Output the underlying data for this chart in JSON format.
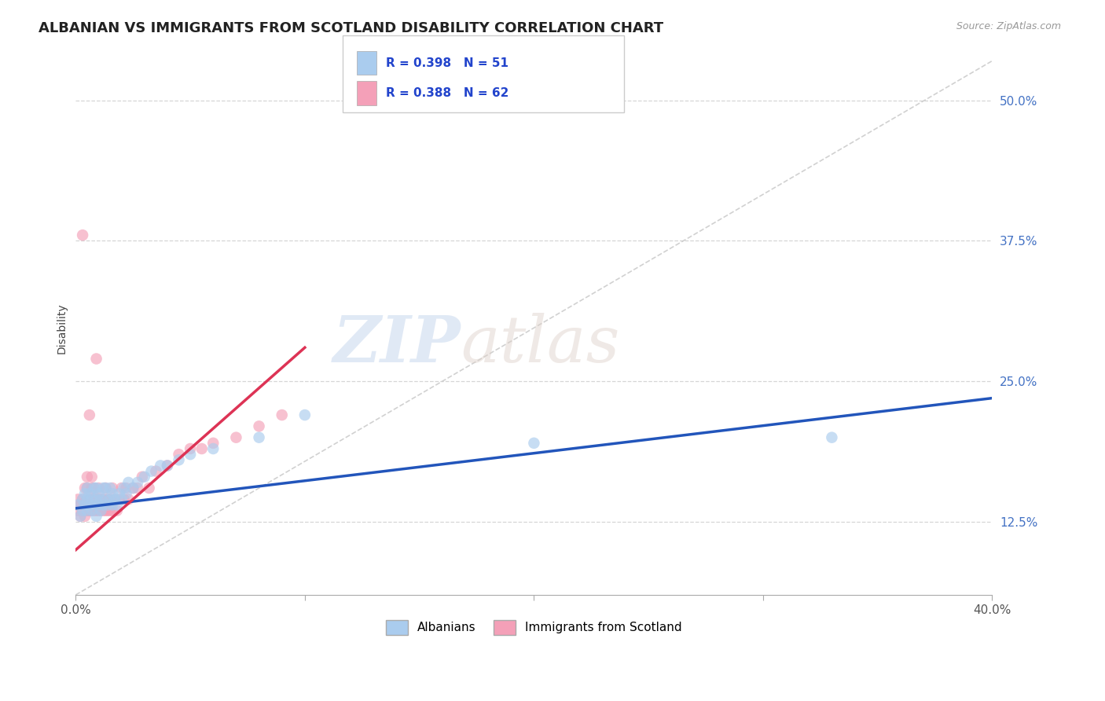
{
  "title": "ALBANIAN VS IMMIGRANTS FROM SCOTLAND DISABILITY CORRELATION CHART",
  "source": "Source: ZipAtlas.com",
  "ylabel": "Disability",
  "xlim": [
    0.0,
    0.4
  ],
  "ylim": [
    0.06,
    0.535
  ],
  "yticks": [
    0.125,
    0.25,
    0.375,
    0.5
  ],
  "yticklabels": [
    "12.5%",
    "25.0%",
    "37.5%",
    "50.0%"
  ],
  "background_color": "#ffffff",
  "grid_color": "#cccccc",
  "legend_R1": "R = 0.398",
  "legend_N1": "N = 51",
  "legend_R2": "R = 0.388",
  "legend_N2": "N = 62",
  "legend_label1": "Albanians",
  "legend_label2": "Immigrants from Scotland",
  "dot_color_blue": "#aaccee",
  "dot_color_pink": "#f4a0b8",
  "line_color_blue": "#2255bb",
  "line_color_pink": "#dd3355",
  "ref_line_color": "#cccccc",
  "title_fontsize": 13,
  "axis_label_fontsize": 10,
  "tick_fontsize": 11,
  "blue_points_x": [
    0.001,
    0.002,
    0.003,
    0.003,
    0.004,
    0.004,
    0.005,
    0.005,
    0.005,
    0.006,
    0.006,
    0.007,
    0.007,
    0.008,
    0.008,
    0.009,
    0.009,
    0.009,
    0.01,
    0.01,
    0.011,
    0.011,
    0.012,
    0.012,
    0.013,
    0.013,
    0.014,
    0.015,
    0.015,
    0.016,
    0.016,
    0.017,
    0.018,
    0.019,
    0.02,
    0.021,
    0.022,
    0.023,
    0.025,
    0.027,
    0.03,
    0.033,
    0.037,
    0.04,
    0.045,
    0.05,
    0.06,
    0.08,
    0.1,
    0.2,
    0.33
  ],
  "blue_points_y": [
    0.14,
    0.13,
    0.145,
    0.135,
    0.14,
    0.15,
    0.135,
    0.145,
    0.155,
    0.14,
    0.15,
    0.135,
    0.145,
    0.14,
    0.155,
    0.13,
    0.145,
    0.155,
    0.14,
    0.15,
    0.135,
    0.145,
    0.14,
    0.155,
    0.145,
    0.155,
    0.14,
    0.145,
    0.155,
    0.14,
    0.15,
    0.145,
    0.14,
    0.15,
    0.145,
    0.155,
    0.15,
    0.16,
    0.155,
    0.16,
    0.165,
    0.17,
    0.175,
    0.175,
    0.18,
    0.185,
    0.19,
    0.2,
    0.22,
    0.195,
    0.2
  ],
  "pink_points_x": [
    0.001,
    0.001,
    0.002,
    0.002,
    0.003,
    0.003,
    0.003,
    0.004,
    0.004,
    0.004,
    0.005,
    0.005,
    0.005,
    0.005,
    0.006,
    0.006,
    0.006,
    0.007,
    0.007,
    0.007,
    0.007,
    0.008,
    0.008,
    0.008,
    0.009,
    0.009,
    0.009,
    0.01,
    0.01,
    0.01,
    0.011,
    0.011,
    0.012,
    0.012,
    0.013,
    0.013,
    0.014,
    0.014,
    0.015,
    0.015,
    0.016,
    0.016,
    0.017,
    0.018,
    0.019,
    0.02,
    0.021,
    0.022,
    0.023,
    0.025,
    0.027,
    0.029,
    0.032,
    0.035,
    0.04,
    0.045,
    0.05,
    0.055,
    0.06,
    0.07,
    0.08,
    0.09
  ],
  "pink_points_y": [
    0.135,
    0.145,
    0.13,
    0.14,
    0.135,
    0.145,
    0.38,
    0.13,
    0.14,
    0.155,
    0.135,
    0.145,
    0.155,
    0.165,
    0.135,
    0.145,
    0.22,
    0.135,
    0.145,
    0.155,
    0.165,
    0.135,
    0.145,
    0.155,
    0.27,
    0.135,
    0.145,
    0.135,
    0.145,
    0.155,
    0.135,
    0.145,
    0.135,
    0.145,
    0.135,
    0.155,
    0.135,
    0.145,
    0.135,
    0.145,
    0.135,
    0.155,
    0.145,
    0.135,
    0.145,
    0.155,
    0.145,
    0.155,
    0.145,
    0.155,
    0.155,
    0.165,
    0.155,
    0.17,
    0.175,
    0.185,
    0.19,
    0.19,
    0.195,
    0.2,
    0.21,
    0.22
  ],
  "blue_trend_x": [
    0.0,
    0.4
  ],
  "blue_trend_y": [
    0.137,
    0.235
  ],
  "pink_trend_x": [
    0.0,
    0.1
  ],
  "pink_trend_y": [
    0.1,
    0.28
  ],
  "ref_line_x": [
    0.0,
    0.4
  ],
  "ref_line_y": [
    0.06,
    0.535
  ]
}
